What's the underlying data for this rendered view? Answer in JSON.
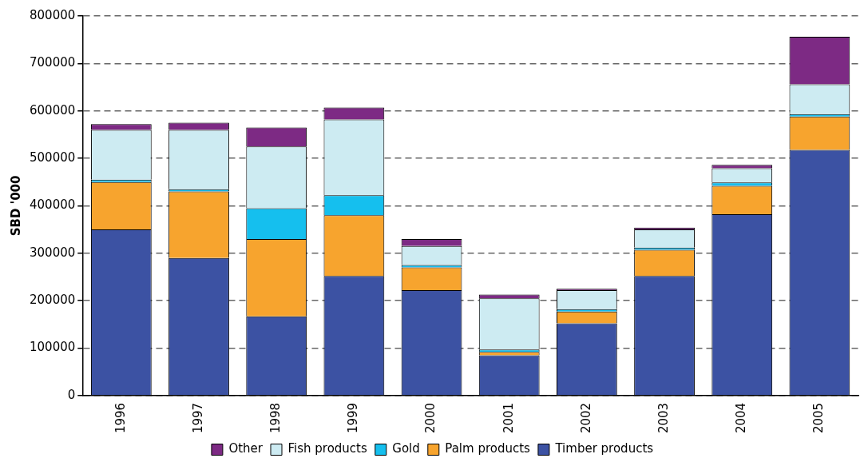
{
  "chart_data": {
    "type": "bar",
    "ylabel": "SBD '000",
    "stacked": true,
    "legend": "bottom",
    "grid": "y",
    "categories": [
      "1996",
      "1997",
      "1998",
      "1999",
      "2000",
      "2001",
      "2002",
      "2003",
      "2004",
      "2005"
    ],
    "ylim": [
      0,
      800000
    ],
    "yticks": [
      0,
      100000,
      200000,
      300000,
      400000,
      500000,
      600000,
      700000,
      800000
    ],
    "series": [
      {
        "name": "Timber products",
        "color": "#3c52a3",
        "values": [
          350000,
          290000,
          167000,
          252000,
          222000,
          85000,
          152000,
          252000,
          382000,
          518000
        ]
      },
      {
        "name": "Palm products",
        "color": "#f7a42e",
        "values": [
          100000,
          140000,
          163000,
          128000,
          48000,
          7000,
          25000,
          55000,
          60000,
          70000
        ]
      },
      {
        "name": "Gold",
        "color": "#15bfee",
        "values": [
          5000,
          5000,
          65000,
          42000,
          5000,
          5000,
          5000,
          5000,
          7000,
          5000
        ]
      },
      {
        "name": "Fish products",
        "color": "#cdebf2",
        "values": [
          105000,
          125000,
          130000,
          160000,
          40000,
          108000,
          40000,
          38000,
          30000,
          63000
        ]
      },
      {
        "name": "Other",
        "color": "#7d2a84",
        "values": [
          12000,
          15000,
          40000,
          25000,
          15000,
          8000,
          3000,
          4000,
          7000,
          100000
        ]
      }
    ]
  }
}
